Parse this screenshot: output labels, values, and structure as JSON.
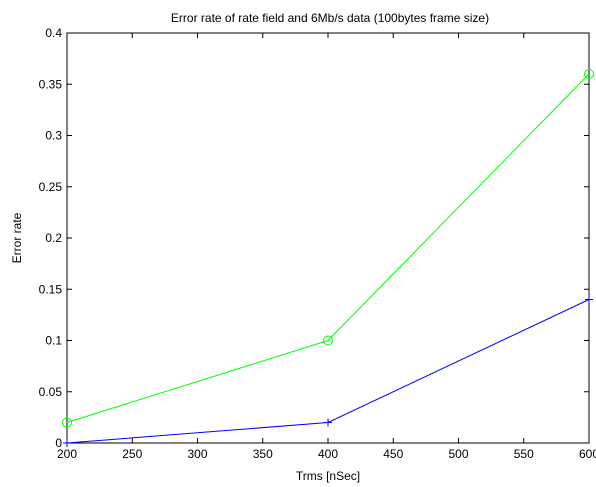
{
  "chart_data": {
    "type": "line",
    "title": "Error rate of rate field and 6Mb/s data (100bytes frame size)",
    "xlabel": "Trms [nSec]",
    "ylabel": "Error rate",
    "xlim": [
      200,
      600
    ],
    "ylim": [
      0,
      0.4
    ],
    "xticks": [
      "200",
      "250",
      "300",
      "350",
      "400",
      "450",
      "500",
      "550",
      "600"
    ],
    "yticks": [
      "0",
      "0.05",
      "0.1",
      "0.15",
      "0.2",
      "0.25",
      "0.3",
      "0.35",
      "0.4"
    ],
    "grid": false,
    "series": [
      {
        "color": "#00ff00",
        "marker": "circle",
        "x": [
          200,
          400,
          600
        ],
        "y": [
          0.02,
          0.1,
          0.36
        ]
      },
      {
        "color": "#0000ff",
        "marker": "plus",
        "x": [
          200,
          400,
          600
        ],
        "y": [
          0,
          0.02,
          0.14
        ]
      }
    ]
  }
}
